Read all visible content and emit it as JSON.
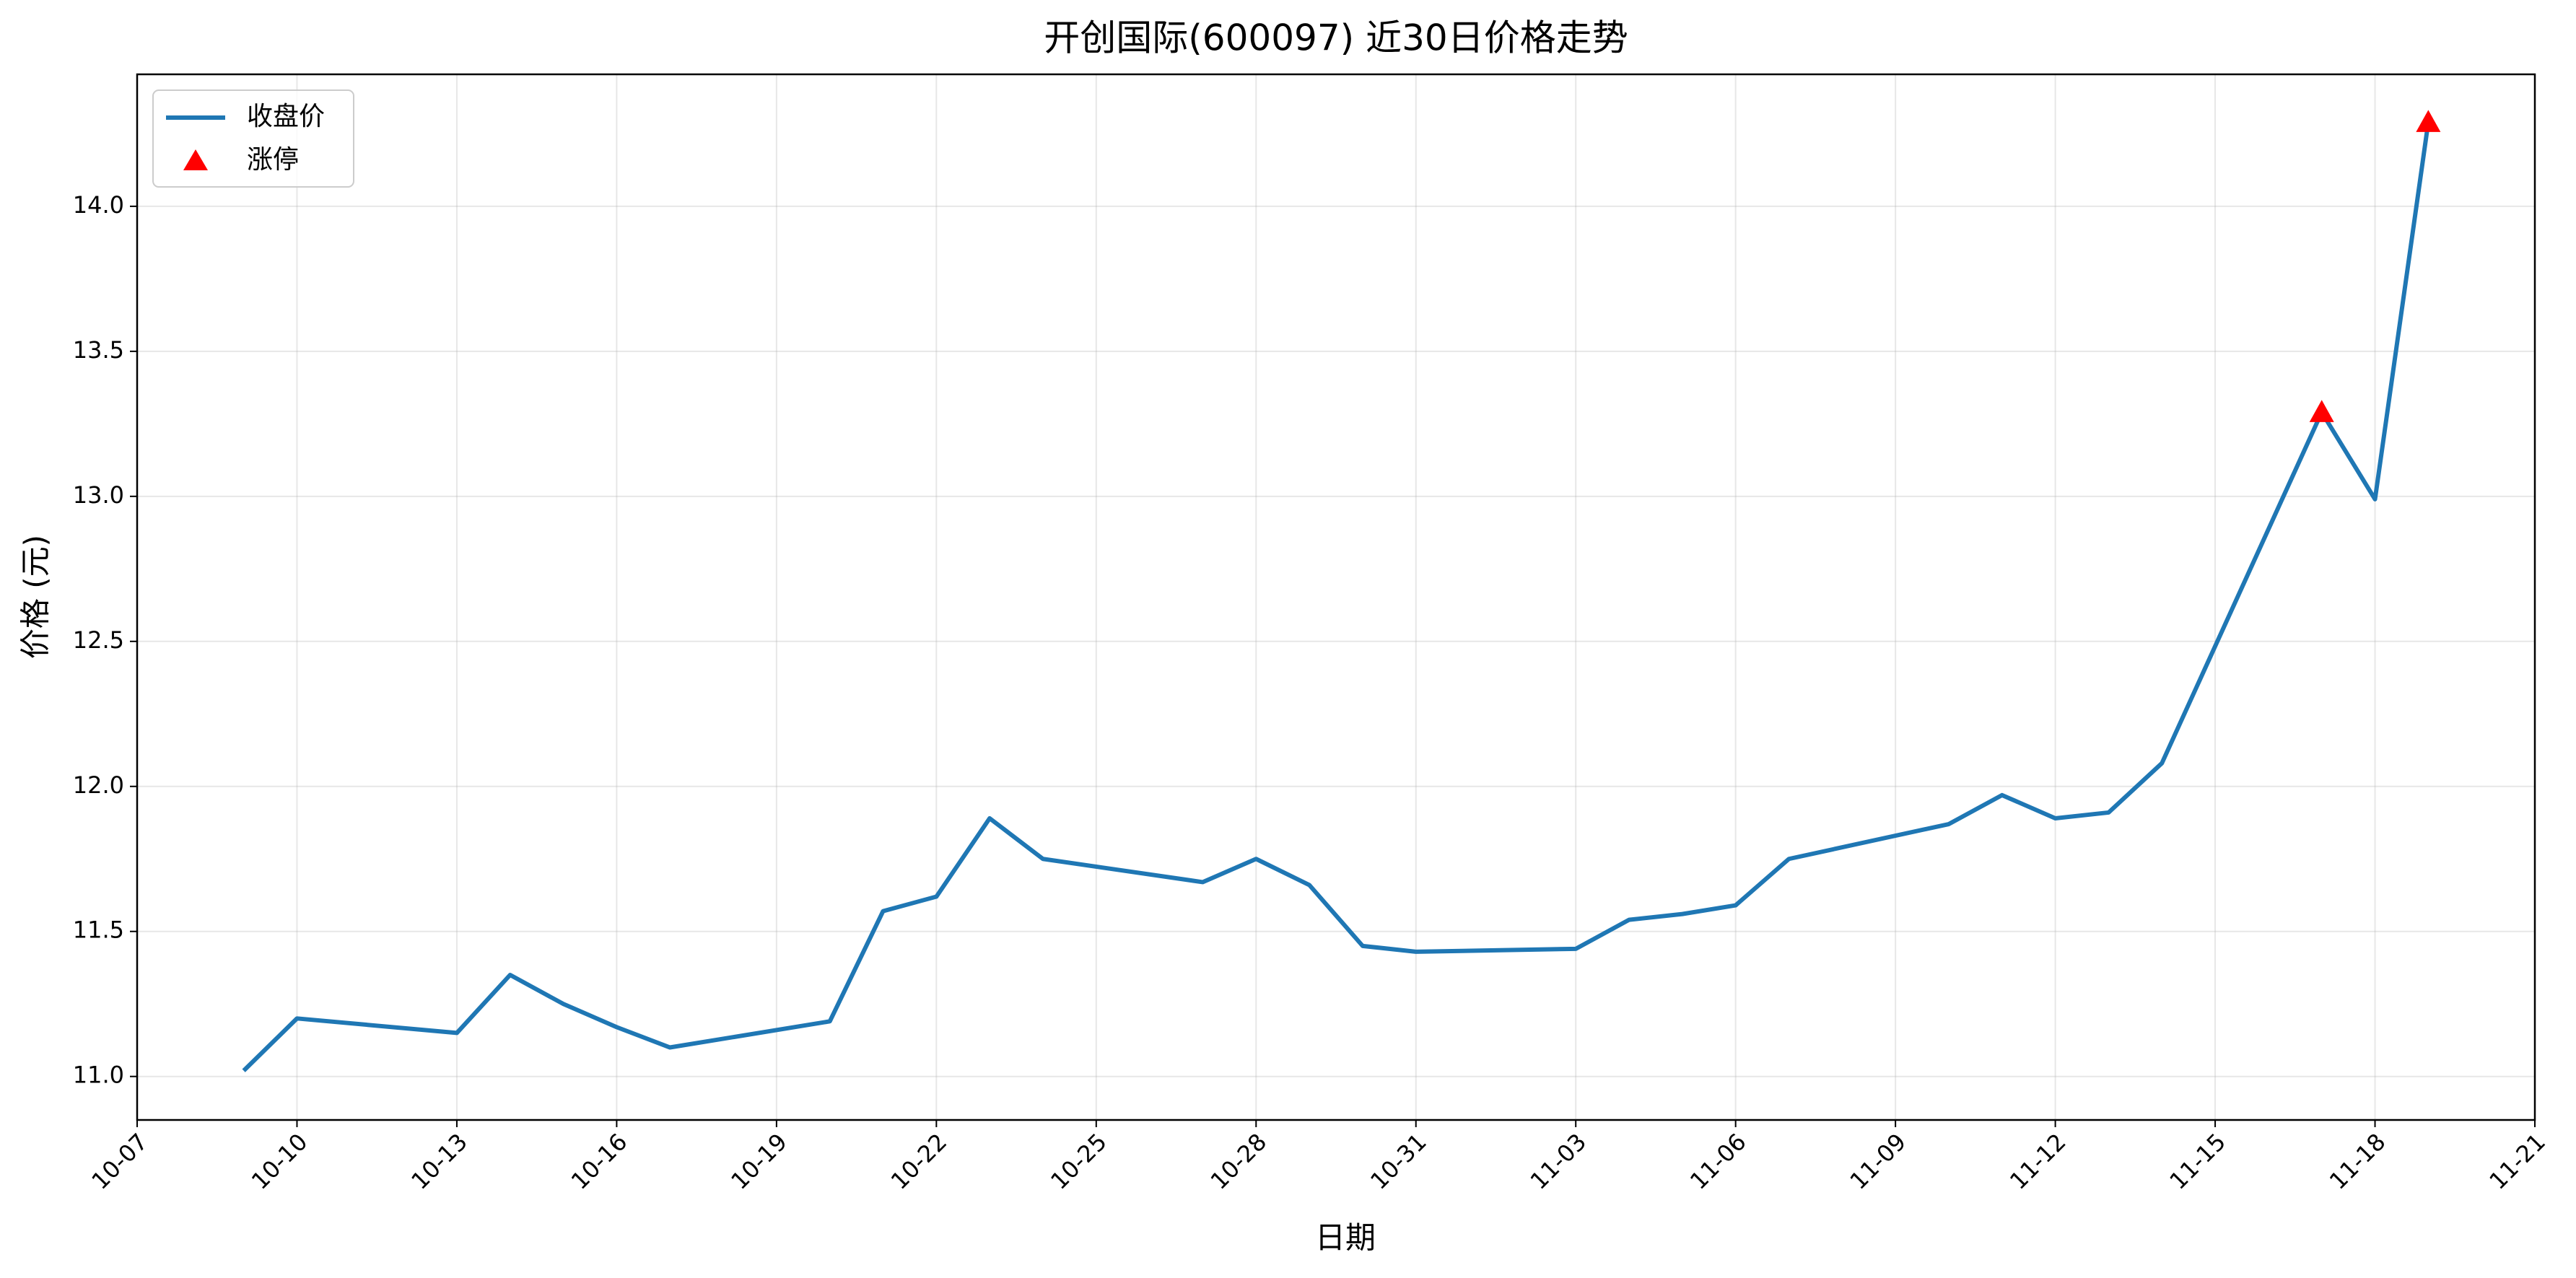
{
  "chart_data": {
    "type": "line",
    "title": "开创国际(600097) 近30日价格走势",
    "xlabel": "日期",
    "ylabel": "价格 (元)",
    "xlim": [
      "10-07",
      "11-21"
    ],
    "xticks": [
      "10-07",
      "10-10",
      "10-13",
      "10-16",
      "10-19",
      "10-22",
      "10-25",
      "10-28",
      "10-31",
      "11-03",
      "11-06",
      "11-09",
      "11-12",
      "11-15",
      "11-18",
      "11-21"
    ],
    "ylim": [
      10.85,
      14.455
    ],
    "yticks": [
      {
        "value": 11,
        "label": "11.0"
      },
      {
        "value": 11.5,
        "label": "11.5"
      },
      {
        "value": 12,
        "label": "12.0"
      },
      {
        "value": 12.5,
        "label": "12.5"
      },
      {
        "value": 13,
        "label": "13.0"
      },
      {
        "value": 13.5,
        "label": "13.5"
      },
      {
        "value": 14,
        "label": "14.0"
      }
    ],
    "grid": true,
    "legend": "upper left",
    "series": [
      {
        "name": "收盘价",
        "type": "line",
        "color": "#1f77b4",
        "x": [
          "10-09",
          "10-10",
          "10-13",
          "10-14",
          "10-15",
          "10-16",
          "10-17",
          "10-20",
          "10-21",
          "10-22",
          "10-23",
          "10-24",
          "10-27",
          "10-28",
          "10-29",
          "10-30",
          "10-31",
          "11-03",
          "11-04",
          "11-05",
          "11-06",
          "11-07",
          "11-10",
          "11-11",
          "11-12",
          "11-13",
          "11-14",
          "11-17",
          "11-18",
          "11-19"
        ],
        "values": [
          11.02,
          11.2,
          11.15,
          11.35,
          11.25,
          11.17,
          11.1,
          11.19,
          11.57,
          11.62,
          11.89,
          11.75,
          11.67,
          11.75,
          11.66,
          11.45,
          11.43,
          11.44,
          11.54,
          11.56,
          11.59,
          11.75,
          11.87,
          11.97,
          11.89,
          11.91,
          12.08,
          13.29,
          12.99,
          14.29
        ]
      },
      {
        "name": "涨停",
        "type": "scatter",
        "color": "#ff0000",
        "x": [
          "11-17",
          "11-19"
        ],
        "values": [
          13.29,
          14.29
        ]
      }
    ]
  }
}
